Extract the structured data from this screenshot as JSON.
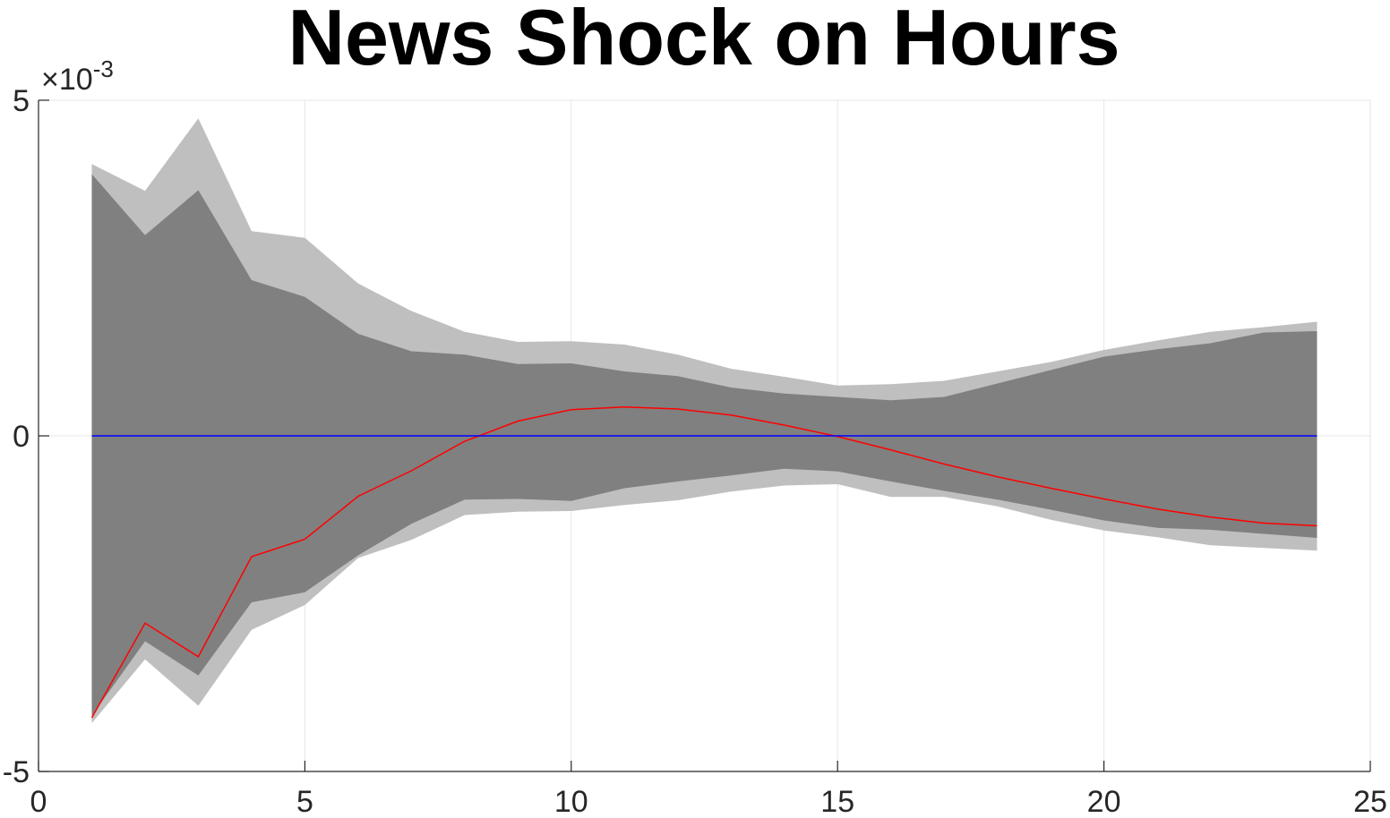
{
  "chart_data": {
    "type": "area",
    "title": "News Shock on Hours",
    "xlabel": "",
    "ylabel": "",
    "xlim": [
      0,
      25
    ],
    "ylim": [
      -0.005,
      0.005
    ],
    "x_ticks": [
      "0",
      "5",
      "10",
      "15",
      "20",
      "25"
    ],
    "y_ticks": [
      "-5",
      "0",
      "5"
    ],
    "y_exponent_label": "×10",
    "y_exponent_power": "-3",
    "grid": true,
    "x": [
      1,
      2,
      3,
      4,
      5,
      6,
      7,
      8,
      9,
      10,
      11,
      12,
      13,
      14,
      15,
      16,
      17,
      18,
      19,
      20,
      21,
      22,
      23,
      24
    ],
    "series": [
      {
        "role": "outer_band",
        "color": "#bfbfbf",
        "upper": [
          0.00405,
          0.00365,
          0.00473,
          0.00305,
          0.00295,
          0.00227,
          0.00186,
          0.00155,
          0.0014,
          0.00141,
          0.00136,
          0.00121,
          0.001,
          0.00088,
          0.00075,
          0.00077,
          0.00082,
          0.00096,
          0.0011,
          0.00128,
          0.00142,
          0.00155,
          0.00162,
          0.0017
        ],
        "lower": [
          -0.00428,
          -0.00333,
          -0.00402,
          -0.00289,
          -0.00252,
          -0.00182,
          -0.00155,
          -0.00118,
          -0.00113,
          -0.00112,
          -0.00103,
          -0.00096,
          -0.00083,
          -0.00074,
          -0.00072,
          -0.00091,
          -0.00091,
          -0.00105,
          -0.00125,
          -0.00141,
          -0.00151,
          -0.00163,
          -0.00167,
          -0.00171
        ]
      },
      {
        "role": "inner_band",
        "color": "#808080",
        "upper": [
          0.0039,
          0.00299,
          0.00366,
          0.00232,
          0.00207,
          0.00152,
          0.00126,
          0.00121,
          0.00107,
          0.00108,
          0.00096,
          0.00089,
          0.00072,
          0.00063,
          0.00058,
          0.00053,
          0.00058,
          0.00078,
          0.00098,
          0.00118,
          0.00129,
          0.00138,
          0.00154,
          0.00156
        ],
        "lower": [
          -0.00417,
          -0.00306,
          -0.00357,
          -0.00248,
          -0.00233,
          -0.00178,
          -0.00131,
          -0.00095,
          -0.00094,
          -0.00097,
          -0.00078,
          -0.00068,
          -0.00059,
          -0.00049,
          -0.00053,
          -0.00068,
          -0.00082,
          -0.00095,
          -0.0011,
          -0.00126,
          -0.00137,
          -0.0014,
          -0.00146,
          -0.00152
        ]
      },
      {
        "role": "point_estimate",
        "color": "#ff0000",
        "values": [
          -0.0042,
          -0.00279,
          -0.00329,
          -0.0018,
          -0.00154,
          -0.0009,
          -0.00052,
          -8e-05,
          0.00022,
          0.00039,
          0.00043,
          0.0004,
          0.00031,
          0.00016,
          -1e-05,
          -0.00021,
          -0.00042,
          -0.00061,
          -0.00078,
          -0.00094,
          -0.00109,
          -0.00121,
          -0.0013,
          -0.00134
        ]
      },
      {
        "role": "zero_line",
        "color": "#0000ff",
        "values": [
          0,
          0,
          0,
          0,
          0,
          0,
          0,
          0,
          0,
          0,
          0,
          0,
          0,
          0,
          0,
          0,
          0,
          0,
          0,
          0,
          0,
          0,
          0,
          0
        ]
      }
    ]
  }
}
